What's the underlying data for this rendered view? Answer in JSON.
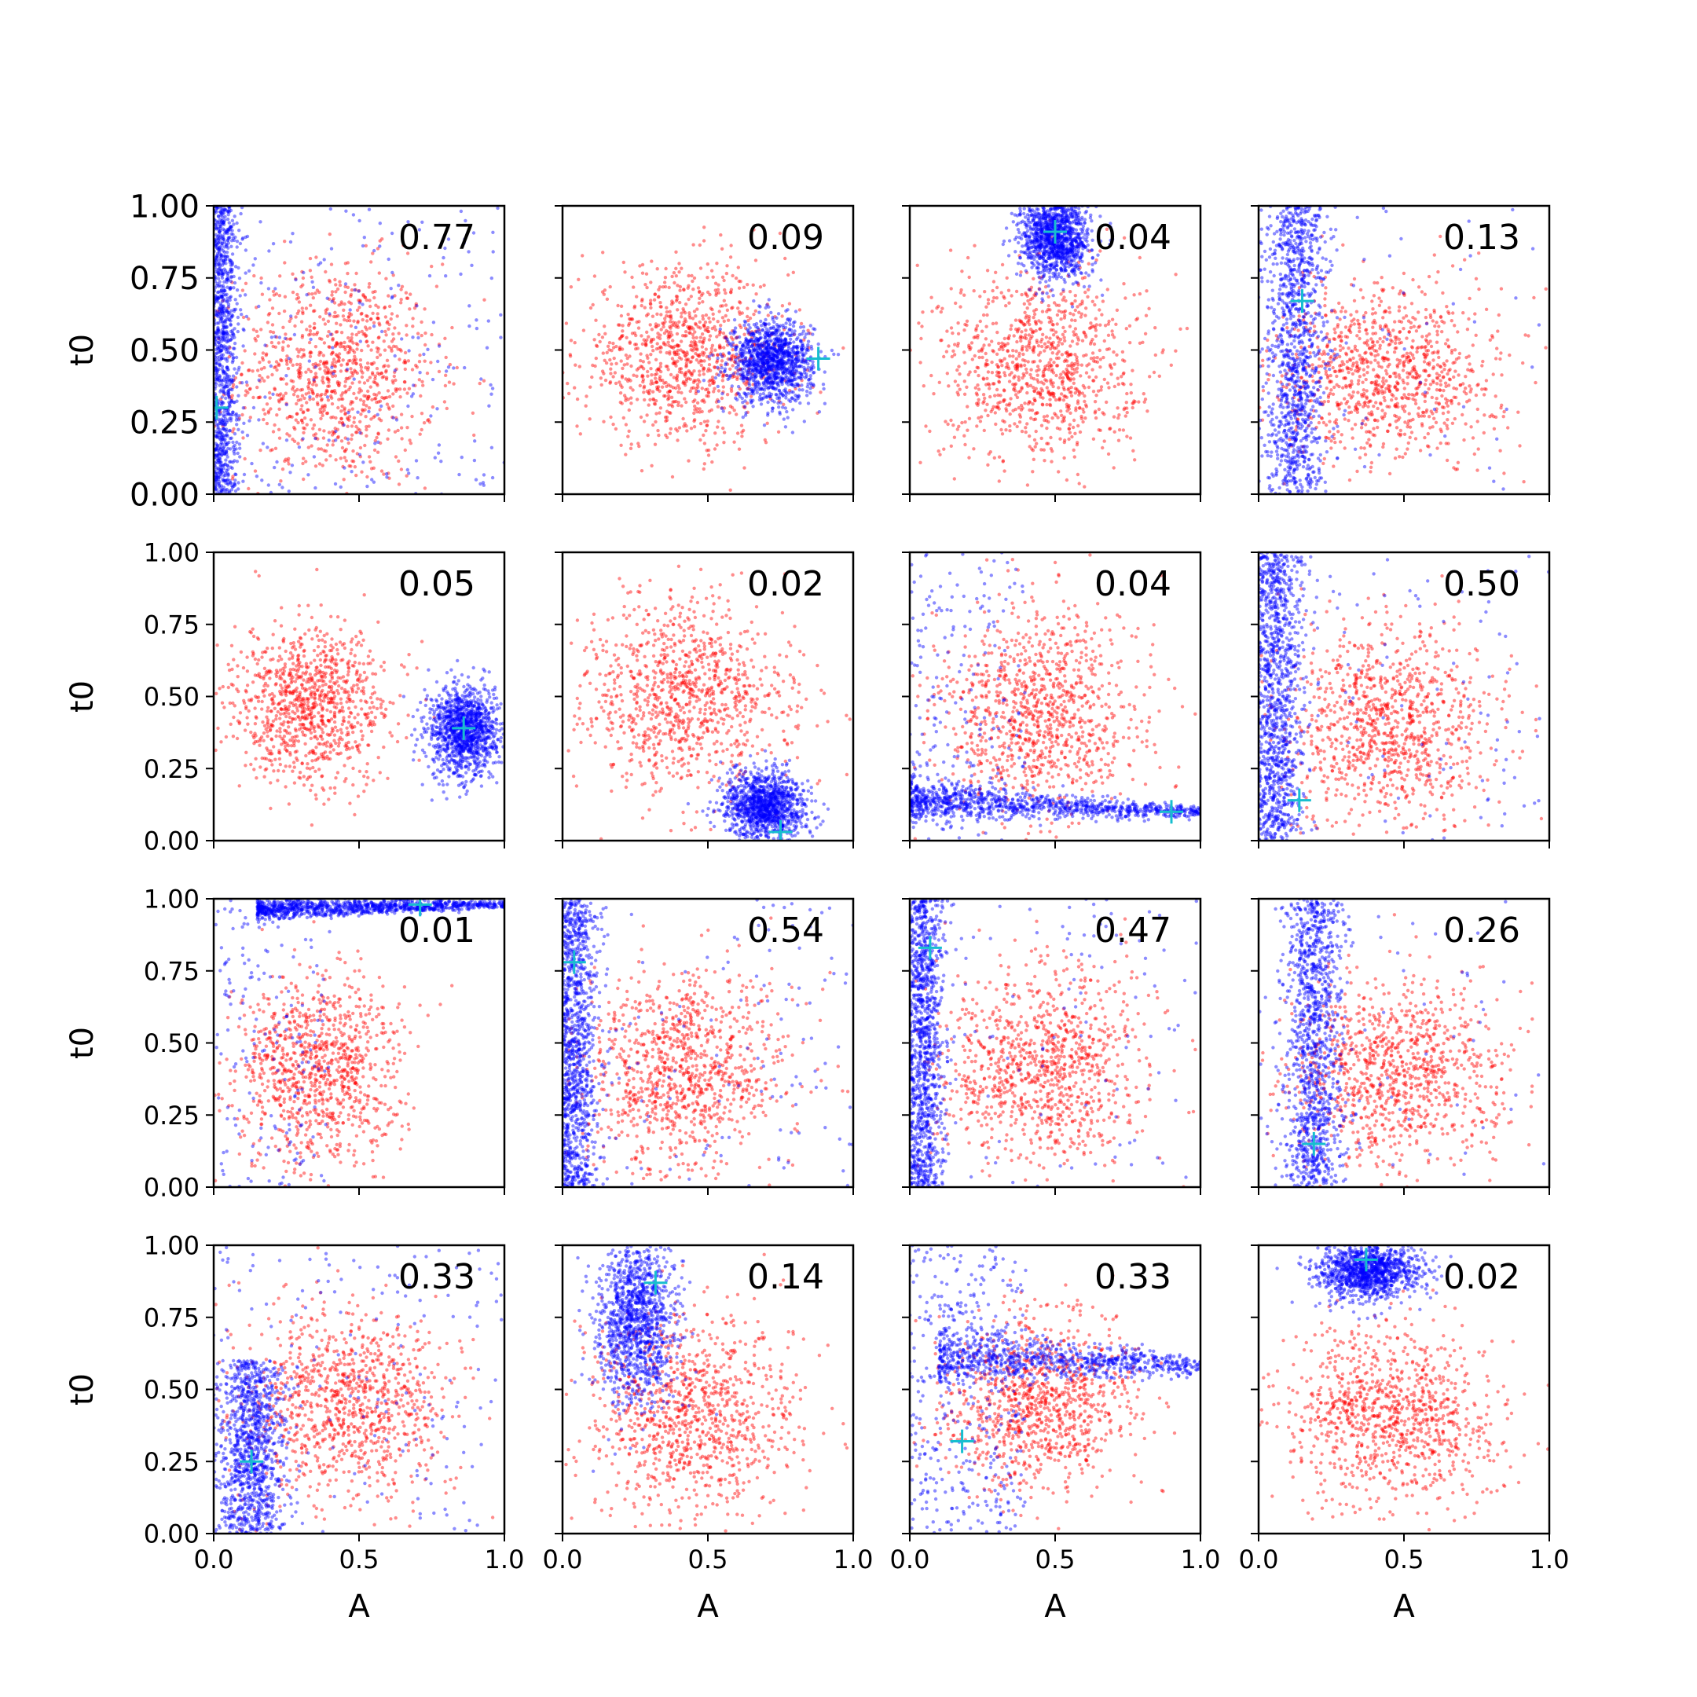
{
  "figure": {
    "background": "#ffffff",
    "x_label": "A",
    "y_label": "t0",
    "layout": "4x4 grid",
    "shared_axes": true
  },
  "chart_data": {
    "type": "scatter",
    "xlim": [
      0,
      1
    ],
    "ylim": [
      0,
      1
    ],
    "x_ticks": [
      "0.0",
      "0.5",
      "1.0"
    ],
    "y_ticks": [
      "0.00",
      "0.25",
      "0.50",
      "0.75",
      "1.00"
    ],
    "grid": false,
    "colors": {
      "red_cloud": "#ff0000",
      "blue_cloud": "#0000ff",
      "marker": "#17becf"
    },
    "series_legend": "none",
    "panels": [
      {
        "value": "0.77",
        "marker": [
          0.01,
          0.3
        ],
        "red": {
          "cx": 0.42,
          "cy": 0.42,
          "sx": 0.17,
          "sy": 0.19
        },
        "blue": {
          "shape": "vstrip",
          "x": 0.03,
          "sx": 0.03,
          "ymin": 0.0,
          "ymax": 1.0,
          "scatter_frac": 0.2
        }
      },
      {
        "value": "0.09",
        "marker": [
          0.88,
          0.47
        ],
        "red": {
          "cx": 0.42,
          "cy": 0.48,
          "sx": 0.18,
          "sy": 0.15
        },
        "blue": {
          "shape": "blob",
          "cx": 0.72,
          "cy": 0.46,
          "sx": 0.07,
          "sy": 0.07
        }
      },
      {
        "value": "0.04",
        "marker": [
          0.5,
          0.91
        ],
        "red": {
          "cx": 0.45,
          "cy": 0.45,
          "sx": 0.17,
          "sy": 0.17
        },
        "blue": {
          "shape": "blob",
          "cx": 0.5,
          "cy": 0.89,
          "sx": 0.06,
          "sy": 0.07
        }
      },
      {
        "value": "0.13",
        "marker": [
          0.15,
          0.67
        ],
        "red": {
          "cx": 0.45,
          "cy": 0.42,
          "sx": 0.19,
          "sy": 0.15
        },
        "blue": {
          "shape": "vstrip",
          "x": 0.13,
          "sx": 0.05,
          "ymin": 0.0,
          "ymax": 1.0,
          "scatter_frac": 0.05
        }
      },
      {
        "value": "0.05",
        "marker": [
          0.86,
          0.39
        ],
        "red": {
          "cx": 0.32,
          "cy": 0.46,
          "sx": 0.14,
          "sy": 0.14
        },
        "blue": {
          "shape": "blob",
          "cx": 0.86,
          "cy": 0.38,
          "sx": 0.06,
          "sy": 0.08
        }
      },
      {
        "value": "0.02",
        "marker": [
          0.75,
          0.03
        ],
        "red": {
          "cx": 0.42,
          "cy": 0.5,
          "sx": 0.18,
          "sy": 0.17
        },
        "blue": {
          "shape": "blob",
          "cx": 0.7,
          "cy": 0.12,
          "sx": 0.07,
          "sy": 0.06
        }
      },
      {
        "value": "0.04",
        "marker": [
          0.9,
          0.1
        ],
        "red": {
          "cx": 0.45,
          "cy": 0.45,
          "sx": 0.17,
          "sy": 0.18
        },
        "blue": {
          "shape": "hband",
          "y0": 0.14,
          "y1": 0.1,
          "sy": 0.025,
          "xmin": 0.0,
          "xmax": 1.0,
          "scatter_frac": 0.15
        }
      },
      {
        "value": "0.50",
        "marker": [
          0.14,
          0.14
        ],
        "red": {
          "cx": 0.45,
          "cy": 0.4,
          "sx": 0.18,
          "sy": 0.17
        },
        "blue": {
          "shape": "vstrip",
          "x": 0.06,
          "sx": 0.05,
          "ymin": 0.0,
          "ymax": 1.0,
          "scatter_frac": 0.08
        }
      },
      {
        "value": "0.01",
        "marker": [
          0.71,
          0.98
        ],
        "red": {
          "cx": 0.36,
          "cy": 0.39,
          "sx": 0.14,
          "sy": 0.17
        },
        "blue": {
          "shape": "hband",
          "y0": 0.96,
          "y1": 0.98,
          "sy": 0.015,
          "xmin": 0.15,
          "xmax": 1.0,
          "scatter_frac": 0.15
        }
      },
      {
        "value": "0.54",
        "marker": [
          0.04,
          0.78
        ],
        "red": {
          "cx": 0.42,
          "cy": 0.4,
          "sx": 0.18,
          "sy": 0.17
        },
        "blue": {
          "shape": "vstrip",
          "x": 0.04,
          "sx": 0.04,
          "ymin": 0.0,
          "ymax": 1.0,
          "scatter_frac": 0.12
        }
      },
      {
        "value": "0.47",
        "marker": [
          0.07,
          0.83
        ],
        "red": {
          "cx": 0.45,
          "cy": 0.42,
          "sx": 0.18,
          "sy": 0.17
        },
        "blue": {
          "shape": "vstrip",
          "x": 0.05,
          "sx": 0.035,
          "ymin": 0.0,
          "ymax": 1.0,
          "scatter_frac": 0.1
        }
      },
      {
        "value": "0.26",
        "marker": [
          0.19,
          0.15
        ],
        "red": {
          "cx": 0.45,
          "cy": 0.4,
          "sx": 0.18,
          "sy": 0.16
        },
        "blue": {
          "shape": "vstrip",
          "x": 0.19,
          "sx": 0.05,
          "ymin": 0.0,
          "ymax": 1.0,
          "scatter_frac": 0.05
        }
      },
      {
        "value": "0.33",
        "marker": [
          0.13,
          0.25
        ],
        "red": {
          "cx": 0.45,
          "cy": 0.45,
          "sx": 0.18,
          "sy": 0.17
        },
        "blue": {
          "shape": "vstrip",
          "x": 0.13,
          "sx": 0.06,
          "ymin": 0.0,
          "ymax": 0.6,
          "scatter_frac": 0.15
        }
      },
      {
        "value": "0.14",
        "marker": [
          0.32,
          0.87
        ],
        "red": {
          "cx": 0.45,
          "cy": 0.4,
          "sx": 0.18,
          "sy": 0.18
        },
        "blue": {
          "shape": "blob",
          "cx": 0.25,
          "cy": 0.75,
          "sx": 0.07,
          "sy": 0.15
        }
      },
      {
        "value": "0.33",
        "marker": [
          0.18,
          0.32
        ],
        "red": {
          "cx": 0.45,
          "cy": 0.45,
          "sx": 0.17,
          "sy": 0.15
        },
        "blue": {
          "shape": "hband",
          "y0": 0.62,
          "y1": 0.58,
          "sy": 0.04,
          "xmin": 0.1,
          "xmax": 1.0,
          "scatter_frac": 0.3
        }
      },
      {
        "value": "0.02",
        "marker": [
          0.37,
          0.95
        ],
        "red": {
          "cx": 0.45,
          "cy": 0.4,
          "sx": 0.18,
          "sy": 0.15
        },
        "blue": {
          "shape": "blob",
          "cx": 0.38,
          "cy": 0.91,
          "sx": 0.09,
          "sy": 0.05
        }
      }
    ]
  }
}
